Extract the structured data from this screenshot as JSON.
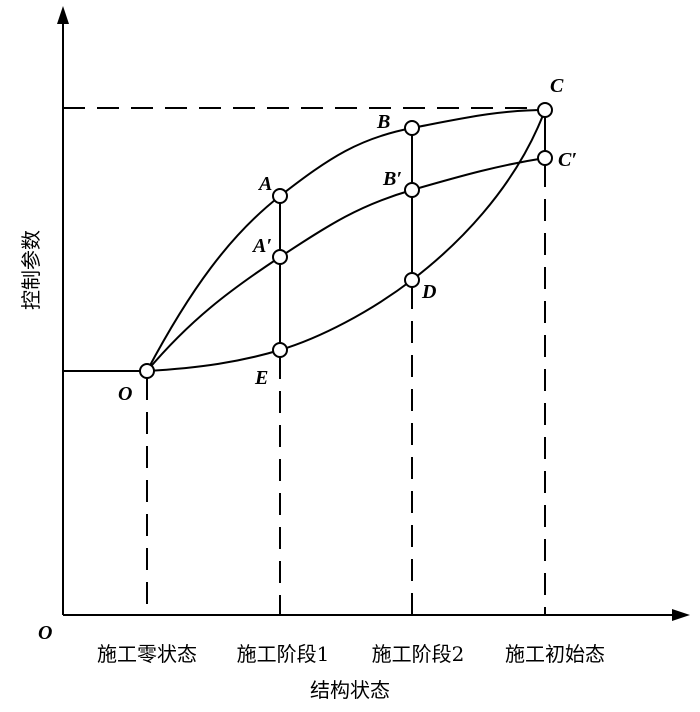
{
  "axes": {
    "y_label": "控制参数",
    "x_label": "结构状态",
    "origin": "O"
  },
  "stages": [
    "施工零状态",
    "施工阶段1",
    "施工阶段2",
    "施工初始态"
  ],
  "points": [
    {
      "label": "O"
    },
    {
      "label": "A"
    },
    {
      "label": "A′"
    },
    {
      "label": "E"
    },
    {
      "label": "B"
    },
    {
      "label": "B′"
    },
    {
      "label": "D"
    },
    {
      "label": "C"
    },
    {
      "label": "C′"
    }
  ]
}
